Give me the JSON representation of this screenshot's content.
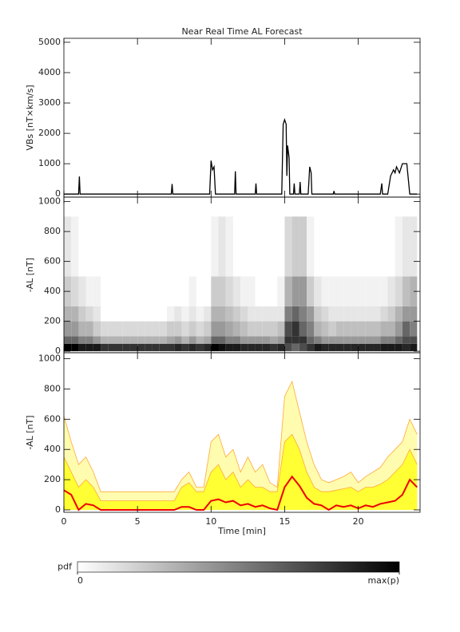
{
  "chart_data": [
    {
      "type": "line",
      "title": "Near Real Time AL Forecast",
      "y_label": "VBs [nT×km/s]",
      "color": "#000000",
      "x": [
        0,
        1.0,
        1.05,
        1.1,
        7.3,
        7.35,
        7.4,
        9.9,
        10.0,
        10.1,
        10.2,
        10.3,
        11.6,
        11.65,
        11.7,
        13.0,
        13.05,
        13.1,
        14.8,
        14.9,
        15.0,
        15.1,
        15.15,
        15.2,
        15.3,
        15.35,
        15.6,
        15.65,
        15.7,
        16.0,
        16.05,
        16.1,
        16.6,
        16.7,
        16.8,
        16.85,
        18.3,
        18.35,
        18.4,
        21.5,
        21.6,
        21.65,
        22.0,
        22.2,
        22.4,
        22.5,
        22.6,
        22.8,
        23.0,
        23.3,
        23.5,
        24
      ],
      "values": [
        0,
        0,
        580,
        0,
        0,
        330,
        0,
        0,
        1100,
        800,
        900,
        0,
        0,
        750,
        0,
        0,
        350,
        0,
        0,
        2300,
        2450,
        2300,
        600,
        1600,
        1200,
        0,
        0,
        350,
        0,
        0,
        400,
        0,
        0,
        900,
        700,
        0,
        0,
        100,
        0,
        0,
        350,
        0,
        0,
        600,
        800,
        700,
        900,
        700,
        1000,
        1000,
        0,
        0
      ],
      "xlim": [
        0,
        24.2
      ],
      "ylim": [
        -100,
        5130
      ],
      "yticks": [
        0,
        1000,
        2000,
        3000,
        4000,
        5000
      ]
    },
    {
      "type": "heatmap",
      "y_label": "-AL [nT]",
      "x_bins": [
        0,
        0.5,
        1,
        1.5,
        2,
        2.5,
        3,
        3.5,
        4,
        4.5,
        5,
        5.5,
        6,
        6.5,
        7,
        7.5,
        8,
        8.5,
        9,
        9.5,
        10,
        10.5,
        11,
        11.5,
        12,
        12.5,
        13,
        13.5,
        14,
        14.5,
        15,
        15.5,
        16,
        16.5,
        17,
        17.5,
        18,
        18.5,
        19,
        19.5,
        20,
        20.5,
        21,
        21.5,
        22,
        22.5,
        23,
        23.5,
        24
      ],
      "y_bins": [
        0,
        50,
        100,
        200,
        300,
        500,
        900
      ],
      "z": [
        [
          1,
          0.6,
          0.4,
          0.3,
          0.2,
          0.1
        ],
        [
          1,
          0.6,
          0.4,
          0.3,
          0.15,
          0.05
        ],
        [
          0.9,
          0.5,
          0.3,
          0.2,
          0.1,
          0
        ],
        [
          0.9,
          0.5,
          0.3,
          0.15,
          0.05,
          0
        ],
        [
          0.9,
          0.4,
          0.2,
          0.1,
          0.05,
          0
        ],
        [
          0.8,
          0.3,
          0.15,
          0,
          0,
          0
        ],
        [
          0.8,
          0.3,
          0.15,
          0,
          0,
          0
        ],
        [
          0.8,
          0.3,
          0.15,
          0,
          0,
          0
        ],
        [
          0.8,
          0.3,
          0.15,
          0,
          0,
          0
        ],
        [
          0.8,
          0.3,
          0.15,
          0,
          0,
          0
        ],
        [
          0.8,
          0.3,
          0.15,
          0,
          0,
          0
        ],
        [
          0.8,
          0.3,
          0.15,
          0,
          0,
          0
        ],
        [
          0.8,
          0.3,
          0.15,
          0,
          0,
          0
        ],
        [
          0.8,
          0.3,
          0.15,
          0,
          0,
          0
        ],
        [
          0.8,
          0.35,
          0.2,
          0.05,
          0,
          0
        ],
        [
          0.85,
          0.4,
          0.2,
          0.1,
          0,
          0
        ],
        [
          0.8,
          0.3,
          0.15,
          0.05,
          0,
          0
        ],
        [
          0.85,
          0.4,
          0.2,
          0.1,
          0.05,
          0
        ],
        [
          0.8,
          0.3,
          0.15,
          0.05,
          0,
          0
        ],
        [
          0.85,
          0.35,
          0.2,
          0.1,
          0,
          0
        ],
        [
          1,
          0.6,
          0.4,
          0.3,
          0.2,
          0.05
        ],
        [
          0.95,
          0.6,
          0.4,
          0.3,
          0.2,
          0.1
        ],
        [
          0.9,
          0.5,
          0.35,
          0.25,
          0.15,
          0.05
        ],
        [
          0.9,
          0.5,
          0.3,
          0.2,
          0.1,
          0
        ],
        [
          0.85,
          0.4,
          0.25,
          0.15,
          0.05,
          0
        ],
        [
          0.85,
          0.4,
          0.2,
          0.1,
          0.05,
          0
        ],
        [
          0.85,
          0.4,
          0.2,
          0.1,
          0,
          0
        ],
        [
          0.85,
          0.4,
          0.2,
          0.1,
          0,
          0
        ],
        [
          0.8,
          0.35,
          0.2,
          0.1,
          0,
          0
        ],
        [
          0.85,
          0.4,
          0.25,
          0.1,
          0.05,
          0
        ],
        [
          0.7,
          0.8,
          0.7,
          0.5,
          0.3,
          0.15
        ],
        [
          0.6,
          0.8,
          0.8,
          0.6,
          0.4,
          0.2
        ],
        [
          0.7,
          0.8,
          0.6,
          0.5,
          0.4,
          0.2
        ],
        [
          0.8,
          0.6,
          0.5,
          0.4,
          0.2,
          0.05
        ],
        [
          0.9,
          0.5,
          0.3,
          0.2,
          0.1,
          0
        ],
        [
          0.85,
          0.4,
          0.25,
          0.15,
          0.05,
          0
        ],
        [
          0.85,
          0.4,
          0.2,
          0.1,
          0.05,
          0
        ],
        [
          0.85,
          0.4,
          0.25,
          0.1,
          0.05,
          0
        ],
        [
          0.85,
          0.4,
          0.25,
          0.1,
          0.05,
          0
        ],
        [
          0.85,
          0.4,
          0.25,
          0.1,
          0.05,
          0
        ],
        [
          0.85,
          0.4,
          0.25,
          0.1,
          0.05,
          0
        ],
        [
          0.85,
          0.4,
          0.25,
          0.1,
          0.05,
          0
        ],
        [
          0.85,
          0.4,
          0.25,
          0.1,
          0.05,
          0
        ],
        [
          0.9,
          0.5,
          0.3,
          0.15,
          0.05,
          0
        ],
        [
          0.9,
          0.5,
          0.3,
          0.2,
          0.1,
          0
        ],
        [
          0.9,
          0.6,
          0.4,
          0.3,
          0.15,
          0.05
        ],
        [
          0.85,
          0.7,
          0.6,
          0.4,
          0.25,
          0.1
        ],
        [
          0.9,
          0.7,
          0.5,
          0.4,
          0.3,
          0.1
        ]
      ],
      "xlim": [
        0,
        24.2
      ],
      "ylim": [
        -10,
        1030
      ],
      "yticks": [
        0,
        200,
        400,
        600,
        800,
        1000
      ]
    },
    {
      "type": "band",
      "y_label": "-AL [nT]",
      "x_label": "Time [min]",
      "x": [
        0,
        0.5,
        1,
        1.5,
        2,
        2.5,
        3,
        3.5,
        4,
        4.5,
        5,
        5.5,
        6,
        6.5,
        7,
        7.5,
        8,
        8.5,
        9,
        9.5,
        10,
        10.5,
        11,
        11.5,
        12,
        12.5,
        13,
        13.5,
        14,
        14.5,
        15,
        15.5,
        16,
        16.5,
        17,
        17.5,
        18,
        18.5,
        19,
        19.5,
        20,
        20.5,
        21,
        21.5,
        22,
        22.5,
        23,
        23.5,
        24
      ],
      "series": [
        {
          "color": "#fffcb0",
          "edge_color": "#ffa838",
          "fill": true,
          "values": [
            620,
            450,
            300,
            350,
            250,
            120,
            120,
            120,
            120,
            120,
            120,
            120,
            120,
            120,
            120,
            120,
            200,
            250,
            150,
            150,
            450,
            500,
            350,
            400,
            250,
            350,
            250,
            300,
            180,
            150,
            750,
            850,
            650,
            450,
            300,
            200,
            180,
            200,
            220,
            250,
            180,
            220,
            250,
            280,
            350,
            400,
            450,
            600,
            500
          ]
        },
        {
          "color": "#ffff33",
          "edge_color": "#ffa838",
          "fill": true,
          "values": [
            350,
            250,
            150,
            200,
            150,
            60,
            60,
            60,
            60,
            60,
            60,
            60,
            60,
            60,
            60,
            60,
            150,
            180,
            120,
            120,
            250,
            300,
            200,
            250,
            150,
            200,
            150,
            150,
            120,
            120,
            450,
            500,
            400,
            250,
            150,
            120,
            120,
            130,
            140,
            150,
            120,
            150,
            150,
            170,
            200,
            250,
            300,
            400,
            300
          ]
        },
        {
          "color": "#ee0000",
          "fill": false,
          "values": [
            130,
            100,
            0,
            40,
            30,
            0,
            0,
            0,
            0,
            0,
            0,
            0,
            0,
            0,
            0,
            0,
            20,
            20,
            0,
            0,
            60,
            70,
            50,
            60,
            30,
            40,
            20,
            30,
            10,
            0,
            150,
            220,
            160,
            80,
            40,
            30,
            0,
            30,
            20,
            30,
            10,
            30,
            20,
            40,
            50,
            60,
            100,
            200,
            150
          ]
        }
      ],
      "xlim": [
        0,
        24.2
      ],
      "ylim": [
        -16,
        1040
      ],
      "yticks": [
        0,
        200,
        400,
        600,
        800,
        1000
      ],
      "xticks": [
        0,
        5,
        10,
        15,
        20
      ]
    },
    {
      "type": "colorbar",
      "label": "pdf",
      "lim": [
        0,
        1
      ],
      "ticks": [
        0,
        {
          "value": 1,
          "label": "max(p)"
        }
      ]
    }
  ]
}
